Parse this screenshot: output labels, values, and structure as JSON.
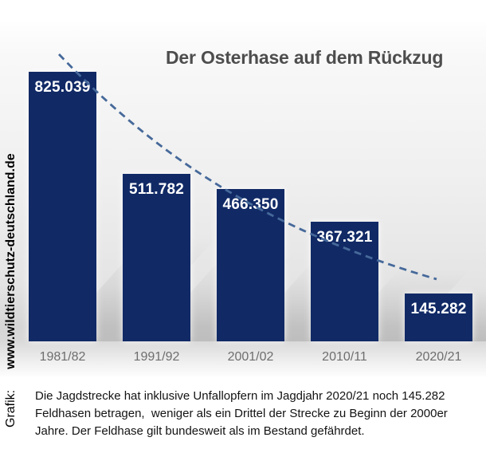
{
  "chart_data": {
    "type": "bar",
    "title": "Der Osterhase auf dem Rückzug",
    "categories": [
      "1981/82",
      "1991/92",
      "2001/02",
      "2010/11",
      "2020/21"
    ],
    "values": [
      825039,
      511782,
      466350,
      367321,
      145282
    ],
    "value_labels": [
      "825.039",
      "511.782",
      "466.350",
      "367.321",
      "145.282"
    ],
    "xlabel": "",
    "ylabel": "",
    "ylim": [
      0,
      825039
    ],
    "grid": false,
    "legend": "none",
    "bar_color": "#112a66",
    "value_label_color": "#ffffff",
    "axis_label_color": "#6e6e6e",
    "title_color": "#4d4d4d",
    "trendline": {
      "style": "dashed",
      "color": "#46699a",
      "description": "falling dashed trend curve from first bar top to last bar top"
    }
  },
  "credit": {
    "prefix": "Grafik:",
    "site": "www.wildtierschutz-deutschland.de"
  },
  "note": {
    "lines": [
      "Die Jagdstrecke hat inklusive Unfallopfern im Jagdjahr 2020/21 noch 145.282",
      "Feldhasen betragen,  weniger als ein Drittel der Strecke zu Beginn der 2000er",
      "Jahre. Der Feldhase gilt bundesweit als im Bestand gefährdet."
    ]
  }
}
